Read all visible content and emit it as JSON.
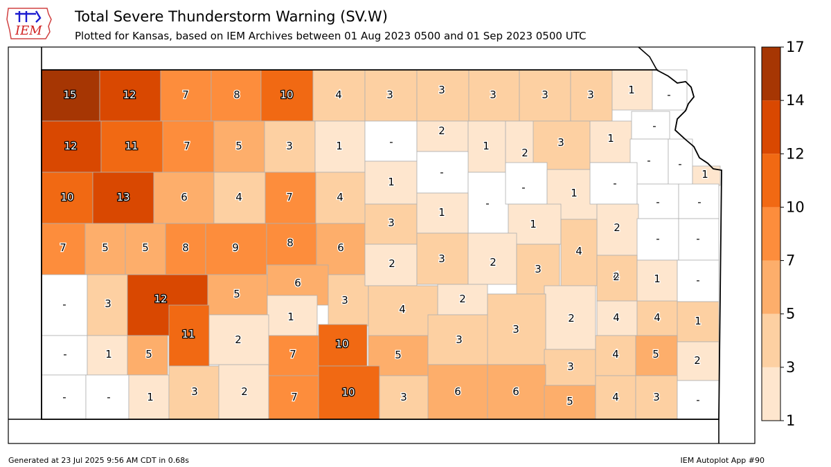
{
  "title": "Total Severe Thunderstorm Warning (SV.W)",
  "subtitle": "Plotted for Kansas, based on IEM Archives  between 01 Aug 2023 0500 and 01 Sep 2023 0500 UTC",
  "logo_text": "IEM",
  "footer_left": "Generated at 23 Jul 2025 9:56 AM CDT in 0.68s",
  "footer_right": "IEM Autoplot App #90",
  "legend": {
    "bins": [
      1,
      3,
      5,
      7,
      10,
      12,
      14,
      17
    ],
    "tick_labels": [
      "1",
      "3",
      "5",
      "7",
      "10",
      "12",
      "14",
      "17"
    ],
    "colors": [
      "#fee6ce",
      "#fdd0a2",
      "#fdae6b",
      "#fd8d3c",
      "#f16913",
      "#d94801",
      "#a63603"
    ]
  },
  "colors": {
    "empty_county": "#ffffff",
    "county_border": "#b0b0b0",
    "state_border": "#000000"
  },
  "counties": [
    {
      "row": 1,
      "cells": [
        "15",
        "12",
        "7",
        "8",
        "10",
        "4",
        "3",
        "3",
        "3",
        "3",
        "3",
        "1",
        "-"
      ]
    },
    {
      "row": 2,
      "cells": [
        "12",
        "11",
        "7",
        "5",
        "3",
        "1",
        "-",
        "2",
        "1",
        "2",
        "3",
        "1",
        "-",
        "-",
        "-",
        "1"
      ]
    },
    {
      "row": 3,
      "cells": [
        "10",
        "13",
        "6",
        "4",
        "7",
        "4",
        "1",
        "-",
        "-",
        "-",
        "1",
        "-",
        "-",
        "-"
      ]
    },
    {
      "row": 4,
      "cells": [
        "7",
        "5",
        "5",
        "8",
        "9",
        "8",
        "6",
        "3",
        "1",
        "1",
        "2",
        "-",
        "-"
      ]
    },
    {
      "row": 5,
      "cells": [
        "-",
        "3",
        "12",
        "5",
        "6",
        "3",
        "2",
        "3",
        "2",
        "3",
        "4",
        "4",
        "1",
        "-"
      ]
    },
    {
      "row": 6,
      "cells": [
        "-",
        "1",
        "5",
        "11",
        "2",
        "1",
        "2",
        "4",
        "2",
        "3",
        "2",
        "4",
        "4",
        "1"
      ]
    },
    {
      "row": 7,
      "cells": [
        "-",
        "-",
        "1",
        "3",
        "2",
        "7",
        "10",
        "5",
        "3",
        "3",
        "3",
        "4",
        "5",
        "4",
        "2"
      ]
    },
    {
      "row": 8,
      "cells": [
        "2",
        "7",
        "10",
        "3",
        "6",
        "6",
        "5",
        "4",
        "3",
        "-"
      ]
    }
  ]
}
